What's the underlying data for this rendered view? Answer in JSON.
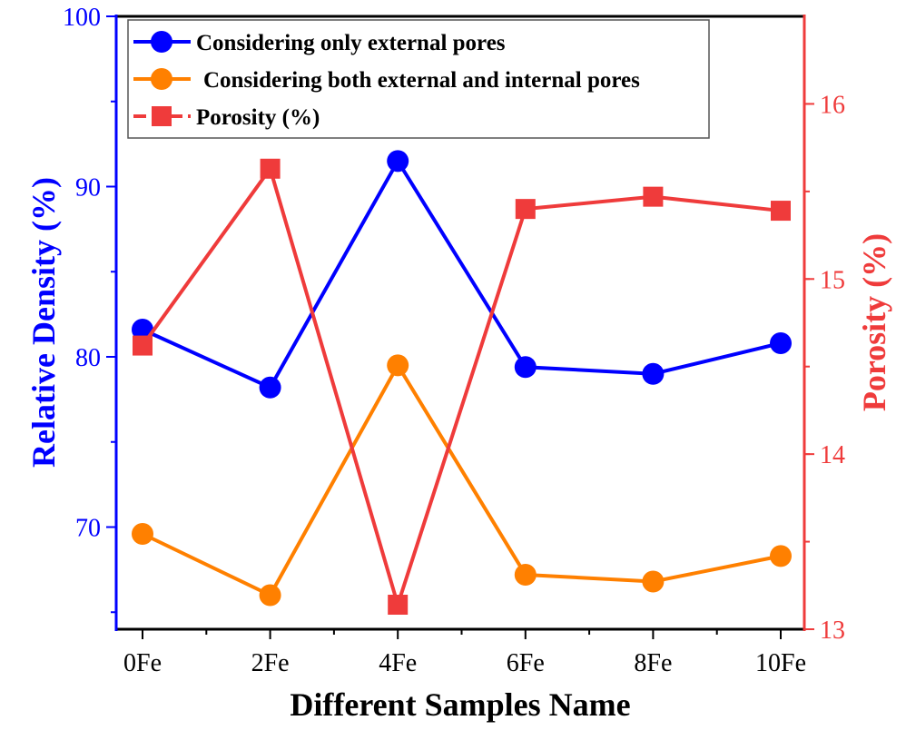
{
  "chart_data": {
    "type": "line",
    "title": "",
    "xlabel": "Different Samples Name",
    "ylabel": "Relative Density (%)",
    "y2label": "Porosity (%)",
    "categories": [
      "0Fe",
      "2Fe",
      "4Fe",
      "6Fe",
      "8Fe",
      "10Fe"
    ],
    "ylim": [
      64,
      100
    ],
    "y2lim": [
      13,
      16.5
    ],
    "yticks": [
      70,
      80,
      90,
      100
    ],
    "y2ticks": [
      13,
      14,
      15,
      16
    ],
    "legend_position": "top-left",
    "grid": false,
    "series": [
      {
        "name": "Considering only external pores",
        "axis": "left",
        "marker": "circle",
        "color": "#0000ff",
        "values": [
          81.6,
          78.2,
          91.5,
          79.4,
          79.0,
          80.8
        ]
      },
      {
        "name": "Considering both external and internal pores",
        "axis": "left",
        "marker": "circle",
        "color": "#ff8000",
        "values": [
          69.6,
          66.0,
          79.5,
          67.2,
          66.8,
          68.3
        ]
      },
      {
        "name": "Porosity (%)",
        "axis": "right",
        "marker": "square",
        "color": "#ef3b3b",
        "values": [
          14.62,
          15.63,
          13.14,
          15.4,
          15.47,
          15.39
        ]
      }
    ]
  }
}
